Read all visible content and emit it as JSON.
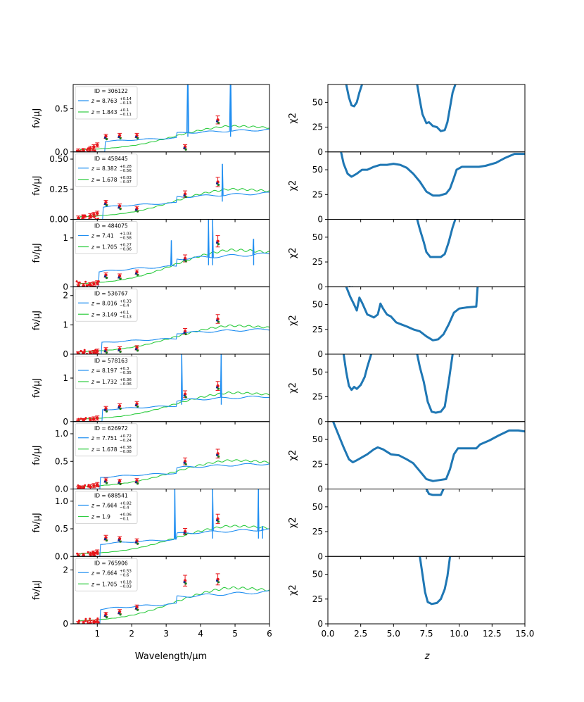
{
  "figure": {
    "sed_xlabel": "Wavelength/μm",
    "sed_ylabel": "fν/μJ",
    "chi_xlabel": "z",
    "chi_ylabel": "χ2",
    "color_high_z": "#1f8ef1",
    "color_low_z": "#2ecc40",
    "color_obs": "#e8161b",
    "color_chi": "#1f77b4"
  },
  "chart_data": [
    {
      "type": "line",
      "panel": "sed",
      "row": 0,
      "xlim": [
        0.3,
        6.0
      ],
      "ylim": [
        0,
        0.78
      ],
      "yticks": [
        "0.0",
        "0.5"
      ],
      "ytick_values": [
        0,
        0.5
      ],
      "legend": {
        "id": "ID = 306122",
        "z1": "8.763",
        "z1_up": "+0.14",
        "z1_lo": "−0.13",
        "z2": "1.843",
        "z2_up": "+0.1",
        "z2_lo": "−0.11"
      },
      "spikes": [
        {
          "x": 3.63,
          "y": 0.78
        },
        {
          "x": 4.87,
          "y": 0.78
        }
      ],
      "obs": [
        {
          "x": 0.45,
          "y": 0.01
        },
        {
          "x": 0.6,
          "y": 0.015
        },
        {
          "x": 0.8,
          "y": 0.04
        },
        {
          "x": 0.9,
          "y": 0.06
        },
        {
          "x": 1.0,
          "y": 0.08
        },
        {
          "x": 1.25,
          "y": 0.18
        },
        {
          "x": 1.65,
          "y": 0.19
        },
        {
          "x": 2.15,
          "y": 0.19
        },
        {
          "x": 3.55,
          "y": 0.06
        },
        {
          "x": 4.5,
          "y": 0.37
        }
      ],
      "chi_ylim": [
        0,
        68
      ],
      "chi_yticks": [
        "0",
        "25",
        "50"
      ]
    },
    {
      "type": "line",
      "panel": "sed",
      "row": 1,
      "xlim": [
        0.3,
        6.0
      ],
      "ylim": [
        0,
        0.56
      ],
      "yticks": [
        "0.00",
        "0.25",
        "0.50"
      ],
      "ytick_values": [
        0,
        0.25,
        0.5
      ],
      "legend": {
        "id": "ID = 458445",
        "z1": "8.382",
        "z1_up": "+0.28",
        "z1_lo": "−0.56",
        "z2": "1.678",
        "z2_up": "+0.03",
        "z2_lo": "−0.07"
      },
      "spikes": [
        {
          "x": 4.63,
          "y": 0.46
        }
      ],
      "obs": [
        {
          "x": 0.45,
          "y": 0.01
        },
        {
          "x": 0.6,
          "y": 0.02
        },
        {
          "x": 0.8,
          "y": 0.03
        },
        {
          "x": 0.9,
          "y": 0.04
        },
        {
          "x": 1.0,
          "y": 0.05
        },
        {
          "x": 1.25,
          "y": 0.14
        },
        {
          "x": 1.65,
          "y": 0.11
        },
        {
          "x": 2.15,
          "y": 0.09
        },
        {
          "x": 3.55,
          "y": 0.21
        },
        {
          "x": 4.5,
          "y": 0.31
        }
      ],
      "chi_ylim": [
        0,
        68
      ],
      "chi_yticks": [
        "0",
        "25",
        "50"
      ]
    },
    {
      "type": "line",
      "panel": "sed",
      "row": 2,
      "xlim": [
        0.3,
        6.0
      ],
      "ylim": [
        0,
        1.38
      ],
      "yticks": [
        "0",
        "1"
      ],
      "ytick_values": [
        0,
        1
      ],
      "legend": {
        "id": "ID = 484075",
        "z1": "7.41",
        "z1_up": "+1.03",
        "z1_lo": "−0.58",
        "z2": "1.705",
        "z2_up": "+0.27",
        "z2_lo": "−0.06"
      },
      "spikes": [
        {
          "x": 3.15,
          "y": 0.95
        },
        {
          "x": 4.23,
          "y": 1.38
        },
        {
          "x": 4.35,
          "y": 1.38
        },
        {
          "x": 5.54,
          "y": 0.98
        }
      ],
      "obs": [
        {
          "x": 0.45,
          "y": 0.01
        },
        {
          "x": 0.6,
          "y": 0.02
        },
        {
          "x": 0.8,
          "y": 0.04
        },
        {
          "x": 0.9,
          "y": 0.06
        },
        {
          "x": 1.0,
          "y": 0.08
        },
        {
          "x": 1.25,
          "y": 0.24
        },
        {
          "x": 1.65,
          "y": 0.22
        },
        {
          "x": 2.15,
          "y": 0.3
        },
        {
          "x": 3.55,
          "y": 0.58
        },
        {
          "x": 4.5,
          "y": 0.93
        }
      ],
      "chi_ylim": [
        0,
        68
      ],
      "chi_yticks": [
        "0",
        "25",
        "50"
      ]
    },
    {
      "type": "line",
      "panel": "sed",
      "row": 3,
      "xlim": [
        0.3,
        6.0
      ],
      "ylim": [
        0,
        2.3
      ],
      "yticks": [
        "0",
        "1",
        "2"
      ],
      "ytick_values": [
        0,
        1,
        2
      ],
      "legend": {
        "id": "ID = 536767",
        "z1": "8.016",
        "z1_up": "+0.33",
        "z1_lo": "−0.4",
        "z2": "3.149",
        "z2_up": "+0.1",
        "z2_lo": "−0.13"
      },
      "spikes": [],
      "obs": [
        {
          "x": 0.45,
          "y": 0.01
        },
        {
          "x": 0.6,
          "y": 0.02
        },
        {
          "x": 0.8,
          "y": 0.04
        },
        {
          "x": 0.9,
          "y": 0.06
        },
        {
          "x": 1.0,
          "y": 0.1
        },
        {
          "x": 1.25,
          "y": 0.15
        },
        {
          "x": 1.65,
          "y": 0.18
        },
        {
          "x": 2.15,
          "y": 0.22
        },
        {
          "x": 3.55,
          "y": 0.78
        },
        {
          "x": 4.5,
          "y": 1.2
        }
      ],
      "chi_ylim": [
        0,
        68
      ],
      "chi_yticks": [
        "0",
        "25",
        "50"
      ]
    },
    {
      "type": "line",
      "panel": "sed",
      "row": 4,
      "xlim": [
        0.3,
        6.0
      ],
      "ylim": [
        0,
        1.55
      ],
      "yticks": [
        "0",
        "1"
      ],
      "ytick_values": [
        0,
        1
      ],
      "legend": {
        "id": "ID = 578163",
        "z1": "8.197",
        "z1_up": "+0.3",
        "z1_lo": "−0.35",
        "z2": "1.732",
        "z2_up": "+0.36",
        "z2_lo": "−0.06"
      },
      "spikes": [
        {
          "x": 3.45,
          "y": 1.55
        },
        {
          "x": 4.6,
          "y": 1.55
        }
      ],
      "obs": [
        {
          "x": 0.45,
          "y": 0.01
        },
        {
          "x": 0.6,
          "y": 0.02
        },
        {
          "x": 0.8,
          "y": 0.04
        },
        {
          "x": 0.9,
          "y": 0.06
        },
        {
          "x": 1.0,
          "y": 0.08
        },
        {
          "x": 1.25,
          "y": 0.3
        },
        {
          "x": 1.65,
          "y": 0.36
        },
        {
          "x": 2.15,
          "y": 0.41
        },
        {
          "x": 3.55,
          "y": 0.63
        },
        {
          "x": 4.5,
          "y": 0.82
        }
      ],
      "chi_ylim": [
        0,
        68
      ],
      "chi_yticks": [
        "0",
        "25",
        "50"
      ]
    },
    {
      "type": "line",
      "panel": "sed",
      "row": 5,
      "xlim": [
        0.3,
        6.0
      ],
      "ylim": [
        0,
        1.22
      ],
      "yticks": [
        "0.0",
        "0.5",
        "1.0"
      ],
      "ytick_values": [
        0,
        0.5,
        1.0
      ],
      "legend": {
        "id": "ID = 626972",
        "z1": "7.751",
        "z1_up": "+0.72",
        "z1_lo": "−0.24",
        "z2": "1.678",
        "z2_up": "+0.38",
        "z2_lo": "−0.08"
      },
      "spikes": [],
      "obs": [
        {
          "x": 0.45,
          "y": 0.01
        },
        {
          "x": 0.6,
          "y": 0.02
        },
        {
          "x": 0.8,
          "y": 0.04
        },
        {
          "x": 0.9,
          "y": 0.06
        },
        {
          "x": 1.0,
          "y": 0.08
        },
        {
          "x": 1.25,
          "y": 0.16
        },
        {
          "x": 1.65,
          "y": 0.14
        },
        {
          "x": 2.15,
          "y": 0.15
        },
        {
          "x": 3.55,
          "y": 0.5
        },
        {
          "x": 4.5,
          "y": 0.64
        }
      ],
      "chi_ylim": [
        0,
        68
      ],
      "chi_yticks": [
        "0",
        "25",
        "50"
      ]
    },
    {
      "type": "line",
      "panel": "sed",
      "row": 6,
      "xlim": [
        0.3,
        6.0
      ],
      "ylim": [
        0,
        1.22
      ],
      "yticks": [
        "0.0",
        "0.5",
        "1.0"
      ],
      "ytick_values": [
        0,
        0.5,
        1.0
      ],
      "legend": {
        "id": "ID = 688541",
        "z1": "7.664",
        "z1_up": "+0.82",
        "z1_lo": "−0.4",
        "z2": "1.9",
        "z2_up": "+0.06",
        "z2_lo": "−0.1"
      },
      "spikes": [
        {
          "x": 3.25,
          "y": 1.22
        },
        {
          "x": 4.35,
          "y": 1.22
        },
        {
          "x": 5.68,
          "y": 1.22
        },
        {
          "x": 5.8,
          "y": 0.55
        }
      ],
      "obs": [
        {
          "x": 0.45,
          "y": 0.01
        },
        {
          "x": 0.6,
          "y": 0.02
        },
        {
          "x": 0.8,
          "y": 0.04
        },
        {
          "x": 0.9,
          "y": 0.06
        },
        {
          "x": 1.0,
          "y": 0.08
        },
        {
          "x": 1.25,
          "y": 0.34
        },
        {
          "x": 1.65,
          "y": 0.32
        },
        {
          "x": 2.15,
          "y": 0.28
        },
        {
          "x": 3.55,
          "y": 0.45
        },
        {
          "x": 4.5,
          "y": 0.68
        }
      ],
      "chi_ylim": [
        0,
        68
      ],
      "chi_yticks": [
        "0",
        "25",
        "50"
      ]
    },
    {
      "type": "line",
      "panel": "sed",
      "row": 7,
      "xlim": [
        0.3,
        6.0
      ],
      "ylim": [
        0,
        2.5
      ],
      "yticks": [
        "0",
        "2"
      ],
      "ytick_values": [
        0,
        2
      ],
      "legend": {
        "id": "ID = 765906",
        "z1": "7.664",
        "z1_up": "+0.53",
        "z1_lo": "−0.6",
        "z2": "1.705",
        "z2_up": "+0.18",
        "z2_lo": "−0.03"
      },
      "spikes": [],
      "obs": [
        {
          "x": 0.45,
          "y": 0.01
        },
        {
          "x": 0.6,
          "y": 0.02
        },
        {
          "x": 0.8,
          "y": 0.04
        },
        {
          "x": 0.9,
          "y": 0.06
        },
        {
          "x": 1.0,
          "y": 0.08
        },
        {
          "x": 1.25,
          "y": 0.35
        },
        {
          "x": 1.65,
          "y": 0.45
        },
        {
          "x": 2.15,
          "y": 0.62
        },
        {
          "x": 3.55,
          "y": 1.6
        },
        {
          "x": 4.5,
          "y": 1.65
        }
      ],
      "chi_ylim": [
        0,
        68
      ],
      "chi_yticks": [
        "0",
        "25",
        "50"
      ]
    }
  ],
  "chi_data": [
    [
      [
        1.4,
        68
      ],
      [
        1.6,
        55
      ],
      [
        1.8,
        47
      ],
      [
        2.0,
        46
      ],
      [
        2.2,
        50
      ],
      [
        2.4,
        60
      ],
      [
        2.6,
        68
      ],
      null,
      [
        6.8,
        68
      ],
      [
        7.0,
        52
      ],
      [
        7.2,
        38
      ],
      [
        7.5,
        29
      ],
      [
        7.7,
        30
      ],
      [
        8.0,
        26
      ],
      [
        8.3,
        25
      ],
      [
        8.6,
        21
      ],
      [
        8.9,
        22
      ],
      [
        9.1,
        30
      ],
      [
        9.3,
        45
      ],
      [
        9.5,
        60
      ],
      [
        9.7,
        68
      ]
    ],
    [
      [
        1.0,
        68
      ],
      [
        1.2,
        56
      ],
      [
        1.5,
        46
      ],
      [
        1.8,
        43
      ],
      [
        2.2,
        46
      ],
      [
        2.6,
        50
      ],
      [
        3.0,
        50
      ],
      [
        3.5,
        53
      ],
      [
        4.0,
        55
      ],
      [
        4.5,
        55
      ],
      [
        5.0,
        56
      ],
      [
        5.5,
        55
      ],
      [
        6.0,
        52
      ],
      [
        6.5,
        46
      ],
      [
        7.0,
        38
      ],
      [
        7.5,
        28
      ],
      [
        8.0,
        24
      ],
      [
        8.5,
        24
      ],
      [
        9.0,
        26
      ],
      [
        9.3,
        31
      ],
      [
        9.6,
        42
      ],
      [
        9.8,
        50
      ],
      [
        10.2,
        53
      ],
      [
        10.8,
        53
      ],
      [
        11.5,
        53
      ],
      [
        12.0,
        54
      ],
      [
        12.8,
        57
      ],
      [
        13.5,
        62
      ],
      [
        14.2,
        66
      ],
      [
        15.0,
        66
      ]
    ],
    [
      [
        1.6,
        0
      ],
      [
        1.8,
        -1
      ],
      [
        1.9,
        0
      ],
      null,
      [
        6.8,
        68
      ],
      [
        7.0,
        58
      ],
      [
        7.3,
        45
      ],
      [
        7.5,
        35
      ],
      [
        7.8,
        30
      ],
      [
        8.2,
        30
      ],
      [
        8.6,
        30
      ],
      [
        8.9,
        33
      ],
      [
        9.2,
        45
      ],
      [
        9.5,
        60
      ],
      [
        9.7,
        68
      ]
    ],
    [
      [
        1.4,
        68
      ],
      [
        1.7,
        58
      ],
      [
        2.0,
        50
      ],
      [
        2.2,
        44
      ],
      [
        2.4,
        57
      ],
      [
        2.6,
        52
      ],
      [
        2.8,
        46
      ],
      [
        3.0,
        40
      ],
      [
        3.2,
        39
      ],
      [
        3.5,
        37
      ],
      [
        3.8,
        40
      ],
      [
        4.0,
        51
      ],
      [
        4.2,
        46
      ],
      [
        4.5,
        40
      ],
      [
        4.8,
        38
      ],
      [
        5.2,
        32
      ],
      [
        5.6,
        30
      ],
      [
        6.0,
        28
      ],
      [
        6.5,
        25
      ],
      [
        7.0,
        23
      ],
      [
        7.5,
        18
      ],
      [
        8.0,
        14
      ],
      [
        8.4,
        15
      ],
      [
        8.8,
        20
      ],
      [
        9.2,
        30
      ],
      [
        9.6,
        42
      ],
      [
        10.0,
        46
      ],
      [
        10.5,
        47
      ],
      [
        11.3,
        48
      ],
      [
        11.4,
        68
      ]
    ],
    [
      [
        1.2,
        68
      ],
      [
        1.4,
        50
      ],
      [
        1.6,
        36
      ],
      [
        1.8,
        32
      ],
      [
        2.0,
        35
      ],
      [
        2.2,
        33
      ],
      [
        2.5,
        37
      ],
      [
        2.8,
        45
      ],
      [
        3.0,
        55
      ],
      [
        3.3,
        68
      ],
      null,
      [
        6.8,
        68
      ],
      [
        7.0,
        55
      ],
      [
        7.3,
        40
      ],
      [
        7.6,
        20
      ],
      [
        7.9,
        10
      ],
      [
        8.2,
        9
      ],
      [
        8.6,
        10
      ],
      [
        8.9,
        15
      ],
      [
        9.2,
        40
      ],
      [
        9.5,
        68
      ]
    ],
    [
      [
        0.4,
        68
      ],
      [
        0.8,
        55
      ],
      [
        1.2,
        42
      ],
      [
        1.6,
        30
      ],
      [
        1.9,
        27
      ],
      [
        2.2,
        29
      ],
      [
        2.6,
        32
      ],
      [
        3.0,
        35
      ],
      [
        3.5,
        40
      ],
      [
        3.8,
        42
      ],
      [
        4.2,
        40
      ],
      [
        4.8,
        35
      ],
      [
        5.4,
        34
      ],
      [
        6.0,
        30
      ],
      [
        6.5,
        26
      ],
      [
        7.0,
        18
      ],
      [
        7.5,
        10
      ],
      [
        8.0,
        8
      ],
      [
        8.5,
        9
      ],
      [
        9.0,
        10
      ],
      [
        9.3,
        20
      ],
      [
        9.6,
        35
      ],
      [
        9.9,
        41
      ],
      [
        10.5,
        41
      ],
      [
        11.3,
        41
      ],
      [
        11.6,
        45
      ],
      [
        12.3,
        49
      ],
      [
        13.0,
        54
      ],
      [
        13.8,
        59
      ],
      [
        14.5,
        59
      ],
      [
        15.0,
        58
      ]
    ],
    [
      [
        7.5,
        68
      ],
      [
        7.7,
        63
      ],
      [
        8.0,
        62
      ],
      [
        8.3,
        62
      ],
      [
        8.6,
        62
      ],
      [
        8.8,
        68
      ]
    ],
    [
      [
        7.0,
        68
      ],
      [
        7.2,
        50
      ],
      [
        7.4,
        32
      ],
      [
        7.6,
        22
      ],
      [
        7.9,
        20
      ],
      [
        8.3,
        21
      ],
      [
        8.6,
        25
      ],
      [
        8.9,
        35
      ],
      [
        9.1,
        48
      ],
      [
        9.3,
        68
      ]
    ]
  ]
}
